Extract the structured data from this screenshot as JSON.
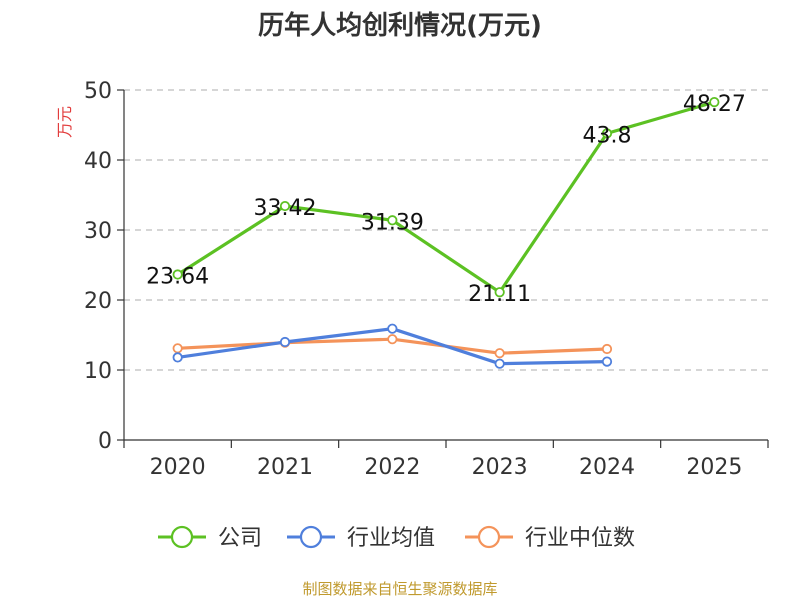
{
  "chart_data": {
    "type": "line",
    "title": "历年人均创利情况(万元)",
    "ylabel": "万元",
    "categories": [
      "2020",
      "2021",
      "2022",
      "2023",
      "2024",
      "2025"
    ],
    "ylim": [
      0,
      50
    ],
    "yticks": [
      0,
      10,
      20,
      30,
      40,
      50
    ],
    "grid": true,
    "legend_position": "bottom",
    "series": [
      {
        "name": "公司",
        "color": "#5cc123",
        "values": [
          23.64,
          33.42,
          31.39,
          21.11,
          43.8,
          48.27
        ],
        "labels": [
          "23.64",
          "33.42",
          "31.39",
          "21.11",
          "43.8",
          "48.27"
        ]
      },
      {
        "name": "行业均值",
        "color": "#4f7fdc",
        "values": [
          11.8,
          14.0,
          15.9,
          10.9,
          11.2,
          null
        ]
      },
      {
        "name": "行业中位数",
        "color": "#f4935a",
        "values": [
          13.1,
          13.9,
          14.4,
          12.4,
          13.0,
          null
        ]
      }
    ],
    "source": "制图数据来自恒生聚源数据库",
    "ylabel_color": "#e23c3c",
    "source_color": "#c09a2e"
  }
}
